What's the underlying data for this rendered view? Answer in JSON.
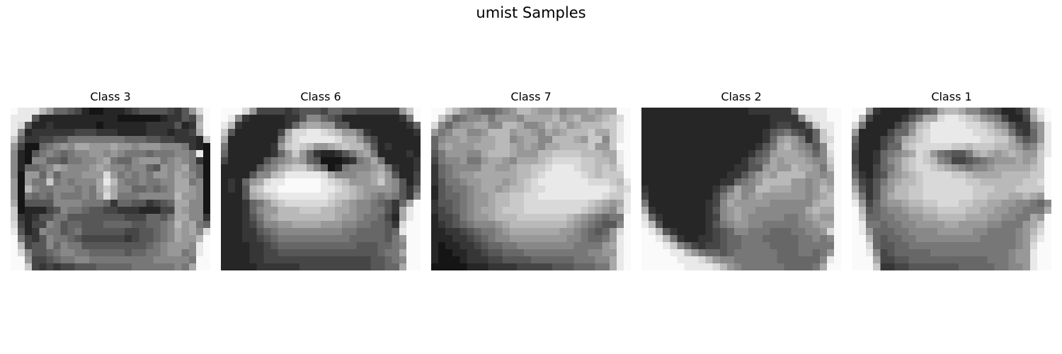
{
  "figure": {
    "title": "umist Samples"
  },
  "samples": [
    {
      "label": "Class 3",
      "description": "frontal face wearing glasses, dark hair",
      "rows": [
        "FEEEB966542112223455554359DF",
        "EEE52222222222211111123354AF",
        "ED522322222212222223333523BF",
        "E8233333344433322223332334AF",
        "C63344557777777766655443332C",
        "941167898AA999A9989998887321",
        "82157876788998987776777887E1",
        "8218866577889A76689997898731",
        "826678A98889A98878865989A761",
        "8199696888999D978787998A9861",
        "91977C787888AEB87787788AA781",
        "91B877888787ACA88667678AA981",
        "9176768777879DA77788888B9981",
        "A1555588887776366553456AA881",
        "C1222458776554433322244A9881",
        "C3235577555555554446657AA883",
        "D4244875665556666556678B9A76",
        "E5238775675555554455678A9A8D",
        "F7435877654444443455678A99BF",
        "FB455868775555555556789998EF",
        "FD855678877666665667789978EF",
        "FF944567788777777777888887FF",
        "FFC4343445556666677777787AFF"
      ]
    },
    {
      "label": "Class 6",
      "description": "face turned toward the right, dark hair on top",
      "rows": [
        "FFFD9444434555466554444449CF",
        "FE8322222335886542222222237F",
        "EB3222222369AA99552222222236",
        "C52222224ADDEEDCB99732222223",
        "A22222227BDEEEEEDBB964222222",
        "722222239CDCB99ABCBB95232222",
        "6222222369C963223579A7222232",
        "4222225789A9651112378A722223",
        "22222578ABCCA861278889A73223",
        "2222588BCEEEEEDA88899AB95224",
        "23269ADEEFFFFFEDCB999AC98524",
        "2325BCEEFFFFFFEEDCBA99998536",
        "2225ABCDEEEEEEEDCCBA98787538",
        "2223679BCDDDDDDCBA98876536AF",
        "22236899BBBCCCBBAA9887753AEF",
        "2223579ABBBBBBBBA99877642AEF",
        "2223468899AAAA99988776653DFF",
        "2223356788888888877666656EFF",
        "22233456777777777766666579FF",
        "22223345666666666665556678FF",
        "2222334455555555555555677AFF",
        "22223344444444444444455678FF",
        "2222233333344444444445566AFF"
      ]
    },
    {
      "label": "Class 7",
      "description": "face in profile looking right, light wavy hair",
      "rows": [
        "FFDB98766789BBA99A8999A9AAFF",
        "FC96788979998AAAAB9AB99ABCDF",
        "D86899AA88BBA889BAB9ABBBCCEF",
        "978AA889BBB9AA98A9ABBBCAACEF",
        "6899A99AABB89AA88BBBA9CC8CEF",
        "69A999AAABBA9A98AABBBBC99CFF",
        "5799988ABBBA999BBCCCCBBBAAEF",
        "47889779AA98AAABCDDDDCCBBAEF",
        "3678888AA99ABBCCDEEEDCCBCBDF",
        "367899AAAAAABBCDEEEEEDCBCCCF",
        "3577899AAA9ABCDEEEEEEEDDDCBE",
        "2567789AA9ABBCDDEEEEEEEEEDCD",
        "25667899ABBCCDDEEEEEEEEEDCCE",
        "35567899ABBCCDDDDDDDDDCBA9AE",
        "3456789AABCCCDDDDDDDDCBA98BE",
        "24457899ABBBCCCCCCCBA987677F",
        "2345678889ABBBBBBBBA9876558F",
        "22334567789AAAAAAA99876569DF",
        "22233456788999999998876679EF",
        "2122334566778888888877779AEF",
        "21122334556667777777778899EF",
        "2111233344555566666677788AEF",
        "1111122233334444455566677AEF"
      ]
    },
    {
      "label": "Class 2",
      "description": "head in profile facing right, dark hair covering the left side",
      "rows": [
        "2222222222222223333337EEEEFF",
        "22222222222222222233338DEEFF",
        "222222222222222222344336CEEF",
        "2222222222222222235675436CEF",
        "22222222222222222369A9736CDF",
        "2222222222222222357AB98758EF",
        "2222222222222223569AAA9868DF",
        "222222222222223567A9AAA988CF",
        "222222222222233559A99BAA97BF",
        "22222222222233579A9BBBB9989F",
        "22222222222336789BBBB9989A9F",
        "3222222222357A88BBAAA9989BAF",
        "4222222222479A89A99999989ABF",
        "722222222348A99999888888ABBF",
        "A322222223589A998888888ABAAF",
        "D632222223489A9888887789A99F",
        "EB52222223578998877777889AAF",
        "FEB53222234568877766677889DF",
        "FFEB73223345667776666677878F",
        "FFFEC8643445667777666677777F",
        "FFFFEEB97665677777766677679F",
        "FFFFFEEEDB9887777776666668EF",
        "FFFFFFEEEEDB9877777766667AFF"
      ]
    },
    {
      "label": "Class 1",
      "description": "face three-quarter view to the right, dark hair",
      "rows": [
        "FF9322223456ABBA886542235BEF",
        "FB42222357AADEEDCB9874224ADF",
        "D72222468BCEEEEEDDCB9853379E",
        "922224669CDEEEEEEDDCBA74369E",
        "6222457ABCDEEEEEEEDDCCA7569E",
        "5222466BCDDDDDCCBCCCBBA978BE",
        "42236789ADC976557ABA9ABA99CE",
        "4223689BCDCB87445678999A9ACF",
        "5224679BCDDCBA987889AAAAABCF",
        "6324589ABCDDDDCCBAAAABBBBCCF",
        "843579ABBCDDDDDDCCBBBBBBCCDF",
        "A53589BBCCDDDDDDDCCCBBBCCCCF",
        "C7358ABBCCDDDDDDDCCBBBAABA9F",
        "E946899ABBCCDDDCCBBAA9988768",
        "FB567889AABBCCCCBBAA9988777A",
        "FC66778899AABBBBAAA998877A9F",
        "FE77677889999AA9999887779ACF",
        "FE96667788889999988777789BDF",
        "FFB6566778888888887777789CEF",
        "FFD6556677777777777777789DFF",
        "FFE8456666677777777777899EFF",
        "FFFA445566666666666777899EFF",
        "FFFC334455555556666677889EFF"
      ]
    }
  ]
}
